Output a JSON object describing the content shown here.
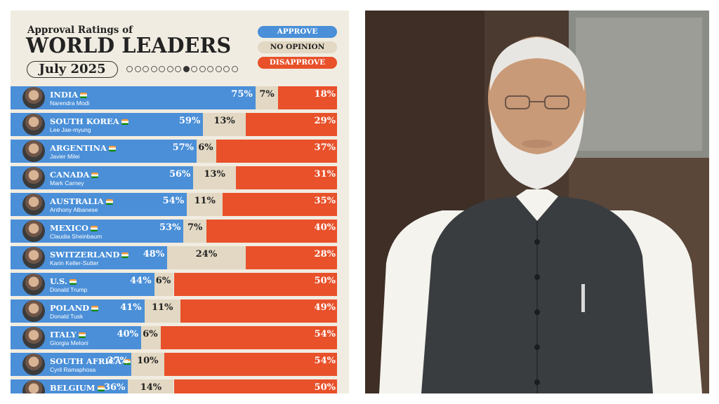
{
  "header": {
    "supertitle": "Approval Ratings of",
    "title": "WORLD LEADERS",
    "date": "July 2025"
  },
  "legend": {
    "approve": "APPROVE",
    "no_opinion": "NO OPINION",
    "disapprove": "DISAPPROVE"
  },
  "pager": {
    "total": 14,
    "active": 7
  },
  "colors": {
    "approve": "#4a8fd8",
    "no_opinion": "#e2d8c3",
    "disapprove": "#e8512a",
    "background": "#f1ece1"
  },
  "chart_data": {
    "type": "bar",
    "stacked": true,
    "orientation": "horizontal",
    "title": "WORLD LEADERS",
    "categories": [
      "INDIA",
      "SOUTH KOREA",
      "ARGENTINA",
      "CANADA",
      "AUSTRALIA",
      "MEXICO",
      "SWITZERLAND",
      "U.S.",
      "POLAND",
      "ITALY",
      "SOUTH AFRICA",
      "BELGIUM"
    ],
    "leaders": [
      "Narendra Modi",
      "Lee Jae-myung",
      "Javier Milei",
      "Mark Carney",
      "Anthony Albanese",
      "Claudia Sheinbaum",
      "Karin Keller-Sutter",
      "Donald Trump",
      "Donald Tusk",
      "Giorgia Meloni",
      "Cyril Ramaphosa",
      ""
    ],
    "series": [
      {
        "name": "APPROVE",
        "values": [
          75,
          59,
          57,
          56,
          54,
          53,
          48,
          44,
          41,
          40,
          37,
          36
        ]
      },
      {
        "name": "NO OPINION",
        "values": [
          7,
          13,
          6,
          13,
          11,
          7,
          24,
          6,
          11,
          6,
          10,
          14
        ]
      },
      {
        "name": "DISAPPROVE",
        "values": [
          18,
          29,
          37,
          31,
          35,
          40,
          28,
          50,
          49,
          54,
          54,
          50
        ]
      }
    ],
    "xlim": [
      0,
      100
    ],
    "legend_position": "top-right",
    "grid": false
  }
}
